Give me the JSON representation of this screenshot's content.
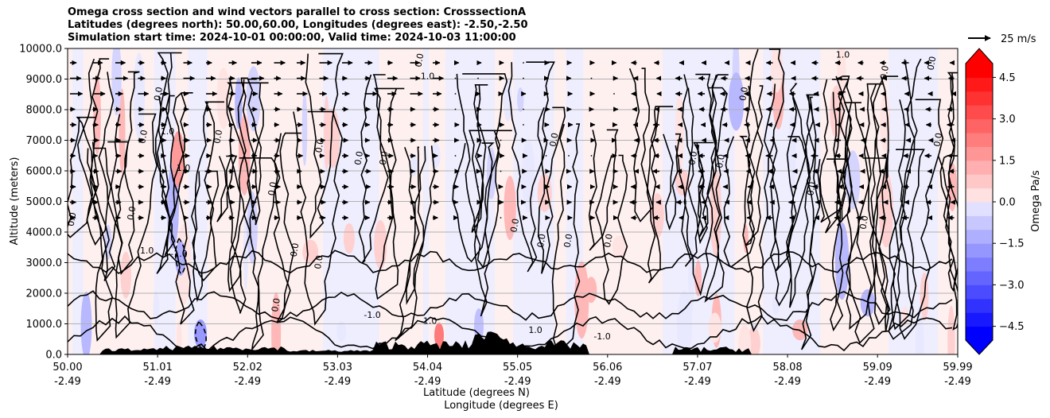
{
  "title": {
    "line1": "Omega cross section and wind vectors parallel to cross section: CrosssectionA",
    "line2": "Latitudes (degrees north): 50.00,60.00, Longitudes (degrees east): -2.50,-2.50",
    "line3": "Simulation start time: 2024-10-01 00:00:00, Valid time: 2024-10-03 11:00:00"
  },
  "reference_vector": {
    "label": "25 m/s",
    "speed": 25
  },
  "chart_data": {
    "type": "heatmap",
    "description_of_fields": "filled omega contours with black zero/±1 contour lines, wind vectors, terrain",
    "ylabel": "Altitude (meters)",
    "xlabel_line1": "Latitude (degrees N)",
    "xlabel_line2": "Longitude (degrees E)",
    "ylim": [
      0,
      10000
    ],
    "xlim_lat": [
      50.0,
      59.99
    ],
    "y_ticks": [
      "0.0",
      "1000.0",
      "2000.0",
      "3000.0",
      "4000.0",
      "5000.0",
      "6000.0",
      "7000.0",
      "8000.0",
      "9000.0",
      "10000.0"
    ],
    "x_ticks": [
      {
        "lat": "50.00",
        "lon": "-2.49"
      },
      {
        "lat": "51.01",
        "lon": "-2.49"
      },
      {
        "lat": "52.02",
        "lon": "-2.49"
      },
      {
        "lat": "53.03",
        "lon": "-2.49"
      },
      {
        "lat": "54.04",
        "lon": "-2.49"
      },
      {
        "lat": "55.05",
        "lon": "-2.49"
      },
      {
        "lat": "56.06",
        "lon": "-2.49"
      },
      {
        "lat": "57.07",
        "lon": "-2.49"
      },
      {
        "lat": "58.08",
        "lon": "-2.49"
      },
      {
        "lat": "59.09",
        "lon": "-2.49"
      },
      {
        "lat": "59.99",
        "lon": "-2.49"
      }
    ],
    "horizontal_grid": true,
    "colorbar": {
      "label": "Omega Pa/s",
      "range": [
        -5,
        5
      ],
      "extend": "both",
      "tick_labels": [
        "4.5",
        "3.0",
        "1.5",
        "0.0",
        "−1.5",
        "−3.0",
        "−4.5"
      ],
      "tick_values": [
        4.5,
        3.0,
        1.5,
        0.0,
        -1.5,
        -3.0,
        -4.5
      ],
      "positive_color": "#ff0000",
      "negative_color": "#0000ff"
    },
    "contour_labels": [
      {
        "text": "0.0",
        "lat": 50.08,
        "alt": 4400
      },
      {
        "text": "1.0",
        "lat": 51.12,
        "alt": 7200
      },
      {
        "text": "1.0",
        "lat": 51.3,
        "alt": 6000
      },
      {
        "text": "0.0",
        "lat": 50.88,
        "alt": 7100
      },
      {
        "text": "0.0",
        "lat": 51.05,
        "alt": 8500
      },
      {
        "text": "0.0",
        "lat": 50.75,
        "alt": 4600
      },
      {
        "text": "1.0",
        "lat": 50.89,
        "alt": 3300
      },
      {
        "text": "-1.0",
        "lat": 51.25,
        "alt": 3200
      },
      {
        "text": "0.0",
        "lat": 51.72,
        "alt": 7100
      },
      {
        "text": "0.0",
        "lat": 52.33,
        "alt": 5400
      },
      {
        "text": "0.0",
        "lat": 52.86,
        "alt": 6800
      },
      {
        "text": "0.0",
        "lat": 53.3,
        "alt": 6400
      },
      {
        "text": "0.0",
        "lat": 53.58,
        "alt": 6400
      },
      {
        "text": "0.0",
        "lat": 52.58,
        "alt": 3400
      },
      {
        "text": "0.0",
        "lat": 52.85,
        "alt": 3000
      },
      {
        "text": "0.0",
        "lat": 52.37,
        "alt": 1600
      },
      {
        "text": "-1.0",
        "lat": 53.42,
        "alt": 1200
      },
      {
        "text": "-1.0",
        "lat": 54.05,
        "alt": 1000
      },
      {
        "text": "1.0",
        "lat": 54.04,
        "alt": 9000
      },
      {
        "text": "0.0",
        "lat": 53.98,
        "alt": 9600
      },
      {
        "text": "0.0",
        "lat": 55.49,
        "alt": 7000
      },
      {
        "text": "0.0",
        "lat": 55.05,
        "alt": 4200
      },
      {
        "text": "0.0",
        "lat": 55.35,
        "alt": 3700
      },
      {
        "text": "0.0",
        "lat": 55.65,
        "alt": 3700
      },
      {
        "text": "0.0",
        "lat": 56.1,
        "alt": 3700
      },
      {
        "text": "1.0",
        "lat": 55.25,
        "alt": 700
      },
      {
        "text": "-1.0",
        "lat": 56.0,
        "alt": 500
      },
      {
        "text": "0.0",
        "lat": 57.05,
        "alt": 6400
      },
      {
        "text": "0.0",
        "lat": 57.36,
        "alt": 6300
      },
      {
        "text": "0.0",
        "lat": 57.62,
        "alt": 8500
      },
      {
        "text": "0.0",
        "lat": 58.38,
        "alt": 5400
      },
      {
        "text": "0.0",
        "lat": 58.97,
        "alt": 4300
      },
      {
        "text": "0.0",
        "lat": 59.2,
        "alt": 9200
      },
      {
        "text": "0.0",
        "lat": 59.8,
        "alt": 7000
      },
      {
        "text": "0.0",
        "lat": 59.73,
        "alt": 9500
      },
      {
        "text": "1.0",
        "lat": 58.7,
        "alt": 9700
      }
    ]
  }
}
